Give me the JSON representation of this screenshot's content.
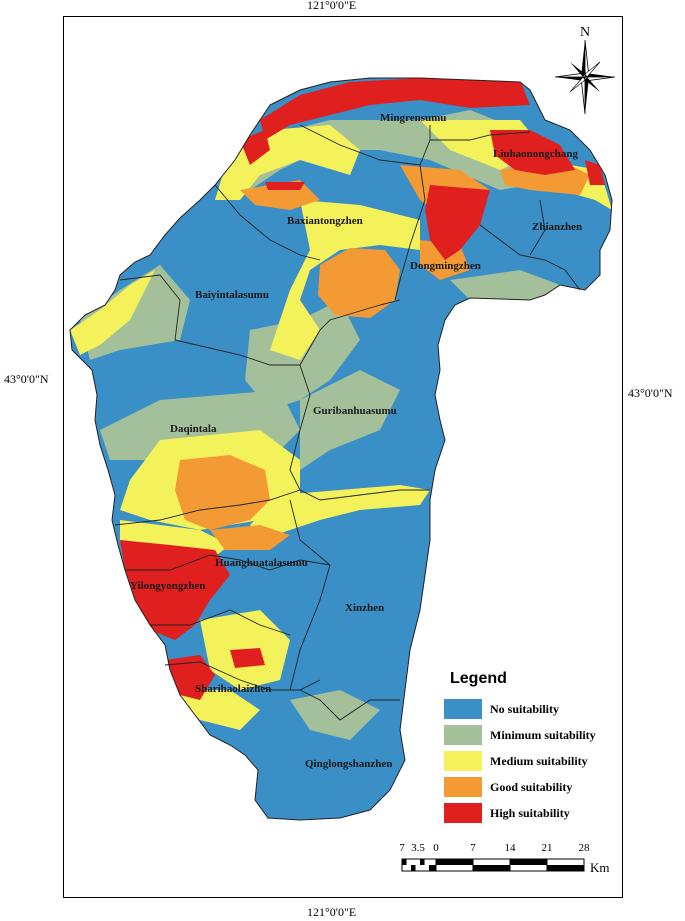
{
  "coordinates": {
    "top_lon": "121°0'0\"E",
    "bottom_lon": "121°0'0\"E",
    "left_lat": "43°0'0\"N",
    "right_lat": "43°0'0\"N"
  },
  "north_arrow": {
    "label": "N",
    "icon": "north-arrow-icon"
  },
  "regions": [
    "Mingrensumu",
    "Liuhaonongchang",
    "Baxiantongzhen",
    "Zhianzhen",
    "Dongmingzhen",
    "Baiyintalasumu",
    "Guribanhuasumu",
    "Daqintala",
    "Huanghuatalasumu",
    "Yilongyongzhen",
    "Xinzhen",
    "Sharihaolaizhen",
    "Qinglongshanzhen"
  ],
  "legend": {
    "title": "Legend",
    "items": [
      {
        "label": "No suitability",
        "color": "#3a8fc6"
      },
      {
        "label": "Minimum suitability",
        "color": "#a3c09a"
      },
      {
        "label": "Medium suitability",
        "color": "#f4f25a"
      },
      {
        "label": "Good suitability",
        "color": "#f39a34"
      },
      {
        "label": "High suitability",
        "color": "#e01f1f"
      }
    ]
  },
  "scale_bar": {
    "ticks": [
      "7",
      "3.5",
      "0",
      "7",
      "14",
      "21",
      "28"
    ],
    "unit": "Km"
  }
}
